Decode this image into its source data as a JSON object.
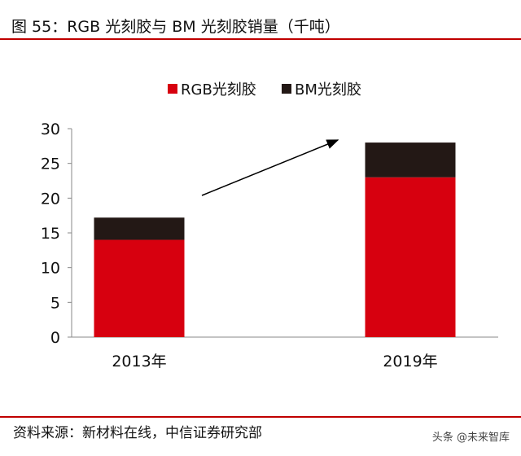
{
  "title": "图 55：RGB 光刻胶与 BM 光刻胶销量（千吨）",
  "source": "资料来源：新材料在线，中信证券研究部",
  "watermark": "头条 @未来智库",
  "chart_data": {
    "type": "bar",
    "stacked": true,
    "categories": [
      "2013年",
      "2019年"
    ],
    "series": [
      {
        "name": "RGB光刻胶",
        "values": [
          14,
          23
        ],
        "color": "#d7000f"
      },
      {
        "name": "BM光刻胶",
        "values": [
          3.2,
          5
        ],
        "color": "#231815"
      }
    ],
    "ylim": [
      0,
      30
    ],
    "yticks": [
      "0",
      "5",
      "10",
      "15",
      "20",
      "25",
      "30"
    ],
    "legend": "top-center",
    "grid": false,
    "annotation": "upward arrow from 2013 to 2019"
  }
}
